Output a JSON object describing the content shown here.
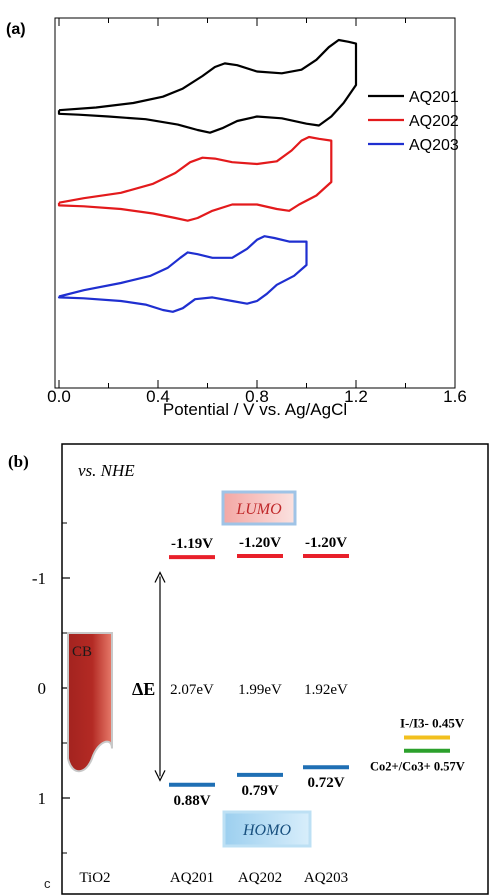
{
  "panel_a": {
    "panel_label": "(a)",
    "chart_data": {
      "type": "line",
      "xlabel": "Potential / V vs. Ag/AgCl",
      "ylabel": "",
      "xlim": [
        0.0,
        1.6
      ],
      "x_ticks": [
        "0.0",
        "0.4",
        "0.8",
        "1.2",
        "1.6"
      ],
      "y_ticks_shown": false,
      "legend_position": "right",
      "series": [
        {
          "name": "AQ201",
          "color": "#000000",
          "offset": 2.0,
          "forward": [
            [
              0.0,
              0.02
            ],
            [
              0.15,
              0.05
            ],
            [
              0.3,
              0.1
            ],
            [
              0.42,
              0.17
            ],
            [
              0.5,
              0.26
            ],
            [
              0.58,
              0.4
            ],
            [
              0.63,
              0.5
            ],
            [
              0.67,
              0.54
            ],
            [
              0.72,
              0.52
            ],
            [
              0.8,
              0.45
            ],
            [
              0.9,
              0.43
            ],
            [
              0.98,
              0.47
            ],
            [
              1.04,
              0.58
            ],
            [
              1.09,
              0.72
            ],
            [
              1.13,
              0.8
            ],
            [
              1.17,
              0.78
            ],
            [
              1.2,
              0.76
            ]
          ],
          "reverse": [
            [
              1.2,
              0.76
            ],
            [
              1.2,
              0.3
            ],
            [
              1.15,
              0.1
            ],
            [
              1.1,
              -0.05
            ],
            [
              1.05,
              -0.15
            ],
            [
              1.0,
              -0.13
            ],
            [
              0.9,
              -0.07
            ],
            [
              0.8,
              -0.05
            ],
            [
              0.72,
              -0.1
            ],
            [
              0.66,
              -0.18
            ],
            [
              0.61,
              -0.23
            ],
            [
              0.56,
              -0.2
            ],
            [
              0.48,
              -0.14
            ],
            [
              0.35,
              -0.08
            ],
            [
              0.2,
              -0.05
            ],
            [
              0.08,
              -0.03
            ],
            [
              0.0,
              -0.02
            ],
            [
              0.0,
              0.02
            ]
          ]
        },
        {
          "name": "AQ202",
          "color": "#e31a1c",
          "offset": 1.0,
          "forward": [
            [
              0.0,
              -0.03
            ],
            [
              0.1,
              0.02
            ],
            [
              0.25,
              0.08
            ],
            [
              0.38,
              0.18
            ],
            [
              0.47,
              0.3
            ],
            [
              0.53,
              0.42
            ],
            [
              0.58,
              0.47
            ],
            [
              0.63,
              0.46
            ],
            [
              0.7,
              0.42
            ],
            [
              0.8,
              0.4
            ],
            [
              0.88,
              0.43
            ],
            [
              0.94,
              0.55
            ],
            [
              0.98,
              0.66
            ],
            [
              1.01,
              0.7
            ],
            [
              1.05,
              0.68
            ],
            [
              1.1,
              0.66
            ]
          ],
          "reverse": [
            [
              1.1,
              0.66
            ],
            [
              1.1,
              0.2
            ],
            [
              1.04,
              0.05
            ],
            [
              0.97,
              -0.05
            ],
            [
              0.93,
              -0.12
            ],
            [
              0.88,
              -0.1
            ],
            [
              0.8,
              -0.05
            ],
            [
              0.7,
              -0.05
            ],
            [
              0.62,
              -0.12
            ],
            [
              0.56,
              -0.2
            ],
            [
              0.52,
              -0.23
            ],
            [
              0.47,
              -0.2
            ],
            [
              0.38,
              -0.15
            ],
            [
              0.25,
              -0.1
            ],
            [
              0.1,
              -0.07
            ],
            [
              0.0,
              -0.06
            ],
            [
              0.0,
              -0.03
            ]
          ]
        },
        {
          "name": "AQ203",
          "color": "#1f2fd0",
          "offset": 0.0,
          "forward": [
            [
              0.0,
              -0.05
            ],
            [
              0.1,
              0.02
            ],
            [
              0.25,
              0.1
            ],
            [
              0.37,
              0.18
            ],
            [
              0.44,
              0.27
            ],
            [
              0.49,
              0.38
            ],
            [
              0.52,
              0.44
            ],
            [
              0.56,
              0.42
            ],
            [
              0.62,
              0.38
            ],
            [
              0.7,
              0.38
            ],
            [
              0.76,
              0.48
            ],
            [
              0.8,
              0.58
            ],
            [
              0.83,
              0.62
            ],
            [
              0.87,
              0.6
            ],
            [
              0.93,
              0.56
            ],
            [
              1.0,
              0.56
            ]
          ],
          "reverse": [
            [
              1.0,
              0.56
            ],
            [
              1.0,
              0.3
            ],
            [
              0.95,
              0.18
            ],
            [
              0.88,
              0.08
            ],
            [
              0.84,
              -0.02
            ],
            [
              0.8,
              -0.1
            ],
            [
              0.76,
              -0.13
            ],
            [
              0.7,
              -0.1
            ],
            [
              0.62,
              -0.06
            ],
            [
              0.55,
              -0.08
            ],
            [
              0.5,
              -0.18
            ],
            [
              0.46,
              -0.22
            ],
            [
              0.42,
              -0.2
            ],
            [
              0.35,
              -0.14
            ],
            [
              0.25,
              -0.1
            ],
            [
              0.1,
              -0.07
            ],
            [
              0.0,
              -0.06
            ],
            [
              0.0,
              -0.05
            ]
          ]
        }
      ]
    }
  },
  "panel_b": {
    "panel_label": "(b)",
    "reference_label": "vs. NHE",
    "chart_data": {
      "type": "bar",
      "ylim": [
        -1.55,
        1.55
      ],
      "y_inverted": true,
      "y_ticks": [
        "-1",
        "0",
        "1"
      ],
      "categories": [
        "TiO2",
        "AQ201",
        "AQ202",
        "AQ203"
      ],
      "cb_label": "CB",
      "cb_band": {
        "top": -0.5,
        "bottom": 0.75
      },
      "lumo_label": "LUMO",
      "homo_label": "HOMO",
      "delta_label": "ΔE",
      "lumo": [
        {
          "dye": "AQ201",
          "value": -1.19,
          "label": "-1.19V"
        },
        {
          "dye": "AQ202",
          "value": -1.2,
          "label": "-1.20V"
        },
        {
          "dye": "AQ203",
          "value": -1.2,
          "label": "-1.20V"
        }
      ],
      "homo": [
        {
          "dye": "AQ201",
          "value": 0.88,
          "label": "0.88V"
        },
        {
          "dye": "AQ202",
          "value": 0.79,
          "label": "0.79V"
        },
        {
          "dye": "AQ203",
          "value": 0.72,
          "label": "0.72V"
        }
      ],
      "gaps": [
        "2.07eV",
        "1.99eV",
        "1.92eV"
      ],
      "redox": [
        {
          "label": "I-/I3- 0.45V",
          "value": 0.45,
          "color": "#f2c01e"
        },
        {
          "label": "Co2+/Co3+ 0.57V",
          "value": 0.57,
          "color": "#2ca02c"
        }
      ],
      "colors": {
        "lumo": "#e8202a",
        "homo": "#1f6fb4",
        "cb": "#a3231f"
      }
    }
  },
  "footer_glyph": "c"
}
